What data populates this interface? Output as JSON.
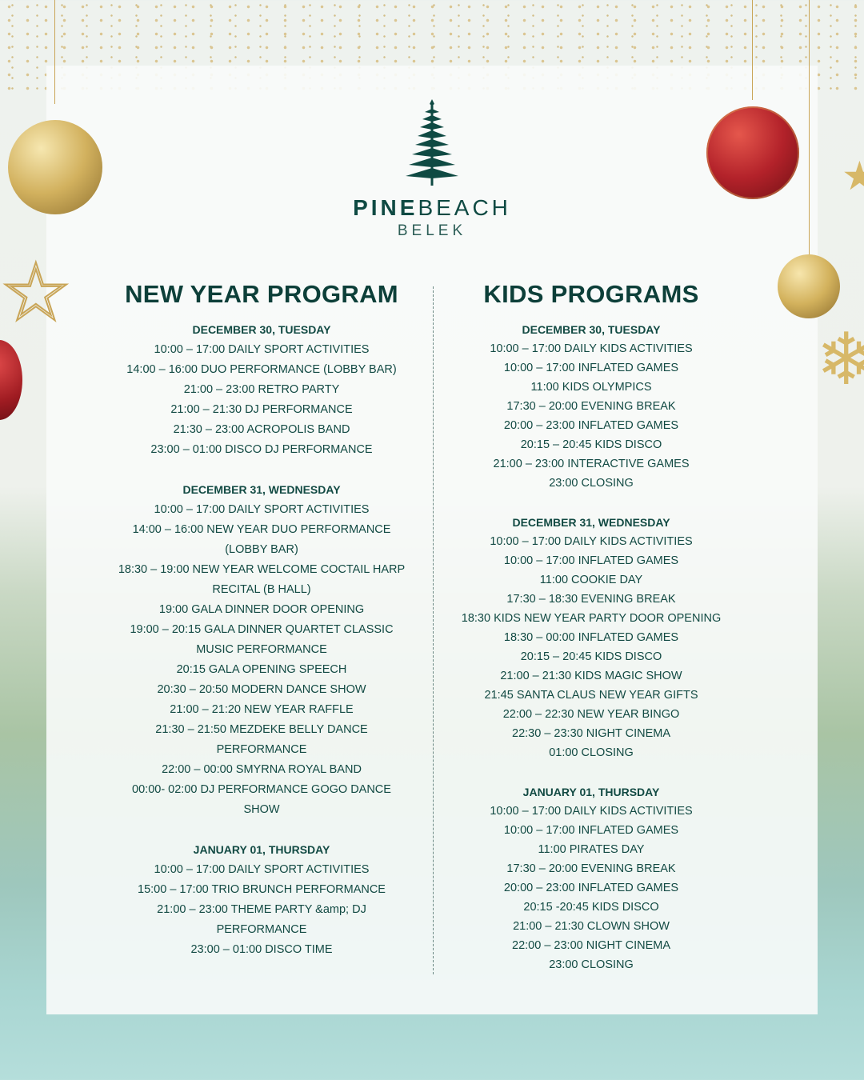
{
  "logo": {
    "brand_bold": "PINE",
    "brand_light": "BEACH",
    "location": "BELEK"
  },
  "new_year": {
    "title": "NEW YEAR PROGRAM",
    "days": [
      {
        "date": "DECEMBER 30, TUESDAY",
        "items": [
          "10:00 – 17:00 DAILY SPORT ACTIVITIES",
          "14:00 – 16:00 DUO PERFORMANCE (LOBBY BAR)",
          "21:00 – 23:00 RETRO PARTY",
          "21:00 – 21:30 DJ PERFORMANCE",
          "21:30 – 23:00 ACROPOLIS BAND",
          "23:00 – 01:00 DISCO DJ PERFORMANCE"
        ]
      },
      {
        "date": "DECEMBER 31, WEDNESDAY",
        "items": [
          "10:00 – 17:00 DAILY SPORT ACTIVITIES",
          "14:00 – 16:00 NEW YEAR DUO PERFORMANCE\n(LOBBY BAR)",
          "18:30 – 19:00 NEW YEAR WELCOME COCTAIL HARP\nRECITAL (B HALL)",
          "19:00 GALA DINNER DOOR OPENING",
          "19:00 – 20:15 GALA DINNER QUARTET CLASSIC\nMUSIC PERFORMANCE",
          "20:15 GALA OPENING SPEECH",
          "20:30 – 20:50 MODERN DANCE SHOW",
          "21:00 – 21:20 NEW YEAR RAFFLE",
          "21:30 – 21:50 MEZDEKE BELLY DANCE\nPERFORMANCE",
          "22:00 – 00:00 SMYRNA ROYAL BAND",
          "00:00- 02:00 DJ PERFORMANCE GOGO DANCE\nSHOW"
        ]
      },
      {
        "date": "JANUARY 01, THURSDAY",
        "items": [
          "10:00 – 17:00 DAILY SPORT ACTIVITIES",
          "15:00 – 17:00 TRIO BRUNCH PERFORMANCE",
          "21:00 – 23:00 THEME PARTY &amp; DJ\nPERFORMANCE",
          "23:00 – 01:00 DISCO TIME"
        ]
      }
    ]
  },
  "kids": {
    "title": "KIDS PROGRAMS",
    "days": [
      {
        "date": "DECEMBER 30, TUESDAY",
        "items": [
          "10:00 – 17:00 DAILY KIDS ACTIVITIES",
          "10:00 – 17:00 INFLATED GAMES",
          "11:00 KIDS OLYMPICS",
          "17:30 – 20:00 EVENING BREAK",
          "20:00 – 23:00 INFLATED GAMES",
          "20:15 – 20:45 KIDS DISCO",
          "21:00 – 23:00 INTERACTIVE GAMES",
          "23:00 CLOSING"
        ]
      },
      {
        "date": "DECEMBER 31, WEDNESDAY",
        "items": [
          "10:00 – 17:00 DAILY KIDS ACTIVITIES",
          "10:00 – 17:00 INFLATED GAMES",
          "11:00 COOKIE DAY",
          "17:30 – 18:30 EVENING BREAK",
          "18:30 KIDS NEW YEAR PARTY DOOR OPENING",
          "18:30 – 00:00 INFLATED GAMES",
          "20:15 – 20:45 KIDS DISCO",
          "21:00 – 21:30 KIDS MAGIC SHOW",
          "21:45 SANTA CLAUS NEW YEAR GIFTS",
          "22:00 – 22:30 NEW YEAR BINGO",
          "22:30 – 23:30 NIGHT CINEMA",
          "01:00 CLOSING"
        ]
      },
      {
        "date": "JANUARY 01, THURSDAY",
        "items": [
          "10:00 – 17:00 DAILY KIDS ACTIVITIES",
          "10:00 – 17:00 INFLATED GAMES",
          "11:00 PIRATES DAY",
          "17:30 – 20:00 EVENING BREAK",
          "20:00 – 23:00 INFLATED GAMES",
          "20:15 -20:45 KIDS DISCO",
          "21:00 – 21:30 CLOWN SHOW",
          "22:00 – 23:00 NIGHT CINEMA",
          "23:00 CLOSING"
        ]
      }
    ]
  },
  "colors": {
    "brand_green": "#0f4a43",
    "gold": "#c9a557",
    "red": "#b3222a"
  },
  "decorations": [
    "gold-bauble-icon",
    "red-bauble-icon",
    "star-icon",
    "snowflake-icon",
    "confetti"
  ]
}
